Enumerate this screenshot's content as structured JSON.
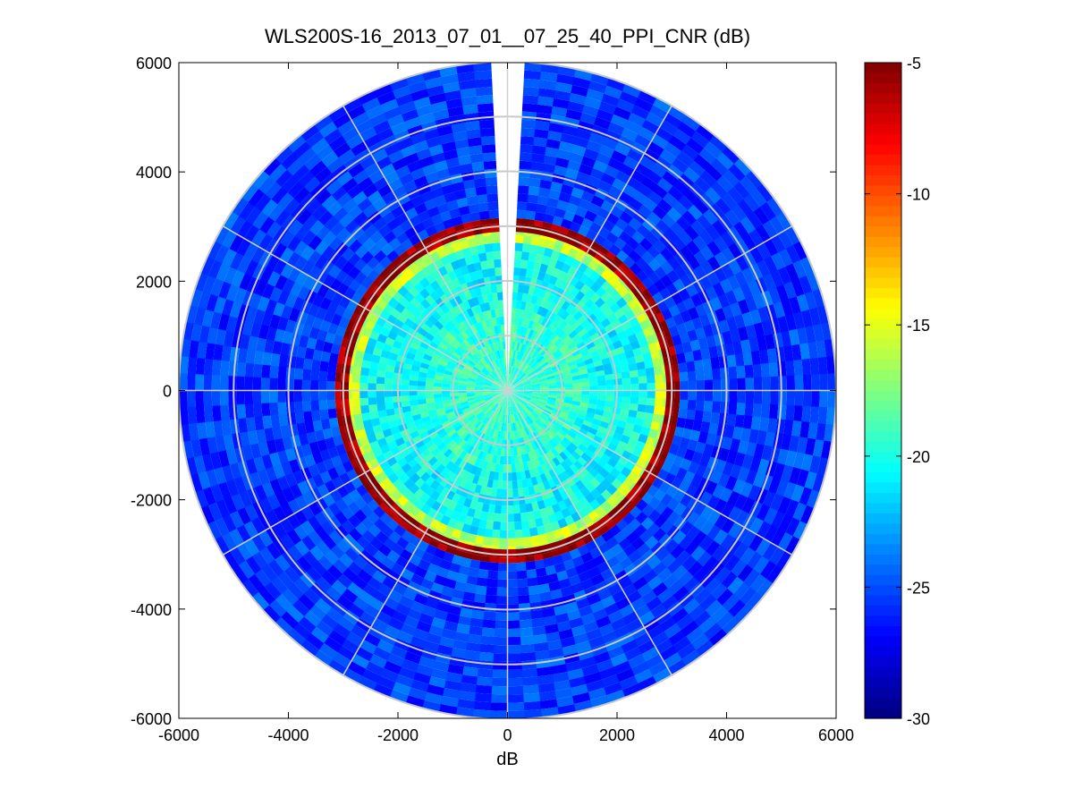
{
  "chart_data": {
    "type": "heatmap",
    "subtype": "polar-ppi",
    "title": "WLS200S-16_2013_07_01__07_25_40_PPI_CNR (dB)",
    "xlabel": "dB",
    "ylabel": "",
    "xlim": [
      -6000,
      6000
    ],
    "ylim": [
      -6000,
      6000
    ],
    "xticks": [
      "-6000",
      "-4000",
      "-2000",
      "0",
      "2000",
      "4000",
      "6000"
    ],
    "yticks": [
      "6000",
      "4000",
      "2000",
      "0",
      "-2000",
      "-4000",
      "-6000"
    ],
    "colorbar": {
      "min": -30,
      "max": -5,
      "ticks": [
        "-5",
        "-10",
        "-15",
        "-20",
        "-25",
        "-30"
      ],
      "colormap": "jet"
    },
    "polar_grid": {
      "range_rings": [
        1000,
        2000,
        3000,
        4000,
        5000,
        6000
      ],
      "spokes_deg": [
        0,
        30,
        60,
        90,
        120,
        150,
        180,
        210,
        240,
        270,
        300,
        330
      ]
    },
    "max_range": 6000,
    "blind_sector_deg": [
      -4,
      4
    ],
    "cnr_profile": [
      {
        "range_from": 0,
        "range_to": 1500,
        "cnr": -19.5
      },
      {
        "range_from": 1500,
        "range_to": 2700,
        "cnr": -20.5
      },
      {
        "range_from": 2700,
        "range_to": 2900,
        "cnr": -16
      },
      {
        "range_from": 2900,
        "range_to": 3150,
        "cnr": -5.5
      },
      {
        "range_from": 3150,
        "range_to": 6000,
        "cnr": -25.5
      }
    ]
  }
}
